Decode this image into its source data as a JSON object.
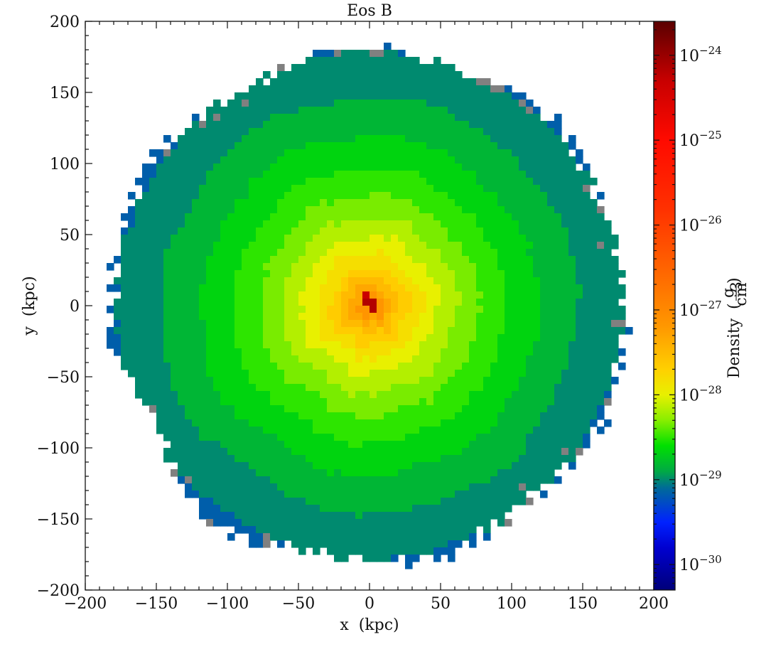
{
  "chart_data": {
    "type": "heatmap",
    "title": "Eos B",
    "xlabel": "x  (kpc)",
    "ylabel": "y  (kpc)",
    "xlim": [
      -200,
      200
    ],
    "ylim": [
      -200,
      200
    ],
    "x_ticks": [
      -200,
      -150,
      -100,
      -50,
      0,
      50,
      100,
      150,
      200
    ],
    "y_ticks": [
      -200,
      -150,
      -100,
      -50,
      0,
      50,
      100,
      150,
      200
    ],
    "x_tick_labels": [
      "−200",
      "−150",
      "−100",
      "−50",
      "0",
      "50",
      "100",
      "150",
      "200"
    ],
    "y_tick_labels": [
      "−200",
      "−150",
      "−100",
      "−50",
      "0",
      "50",
      "100",
      "150",
      "200"
    ],
    "colorbar": {
      "label": "Density",
      "unit_numerator": "g",
      "unit_denominator": "cm",
      "unit_denominator_exponent": "3",
      "scale": "log",
      "range": [
        -30.3,
        -23.6
      ],
      "ticks": [
        {
          "exponent": -30,
          "label_base": "10",
          "label_exp": "−30"
        },
        {
          "exponent": -29,
          "label_base": "10",
          "label_exp": "−29"
        },
        {
          "exponent": -28,
          "label_base": "10",
          "label_exp": "−28"
        },
        {
          "exponent": -27,
          "label_base": "10",
          "label_exp": "−27"
        },
        {
          "exponent": -26,
          "label_base": "10",
          "label_exp": "−26"
        },
        {
          "exponent": -25,
          "label_base": "10",
          "label_exp": "−25"
        },
        {
          "exponent": -24,
          "label_base": "10",
          "label_exp": "−24"
        }
      ],
      "stops": [
        {
          "value": -30.3,
          "color": "#00007a"
        },
        {
          "value": -29.8,
          "color": "#0000d0"
        },
        {
          "value": -29.5,
          "color": "#0022ff"
        },
        {
          "value": -29.1,
          "color": "#006a99"
        },
        {
          "value": -28.9,
          "color": "#00aa44"
        },
        {
          "value": -28.6,
          "color": "#00e000"
        },
        {
          "value": -28.3,
          "color": "#88ee00"
        },
        {
          "value": -28.0,
          "color": "#e8f000"
        },
        {
          "value": -27.7,
          "color": "#ffd000"
        },
        {
          "value": -27.2,
          "color": "#ff9800"
        },
        {
          "value": -26.6,
          "color": "#ff6a00"
        },
        {
          "value": -25.8,
          "color": "#ff3000"
        },
        {
          "value": -25.0,
          "color": "#ff0a00"
        },
        {
          "value": -24.3,
          "color": "#c80000"
        },
        {
          "value": -23.6,
          "color": "#5a0000"
        }
      ]
    },
    "field": {
      "center": [
        0,
        0
      ],
      "peak_log_density": -26.9,
      "edge_radius_kpc": 180,
      "edge_log_density": -30.1,
      "grid_cell_kpc": 5
    },
    "colors": {
      "masked_cell": "#808080",
      "background": "#ffffff"
    }
  }
}
